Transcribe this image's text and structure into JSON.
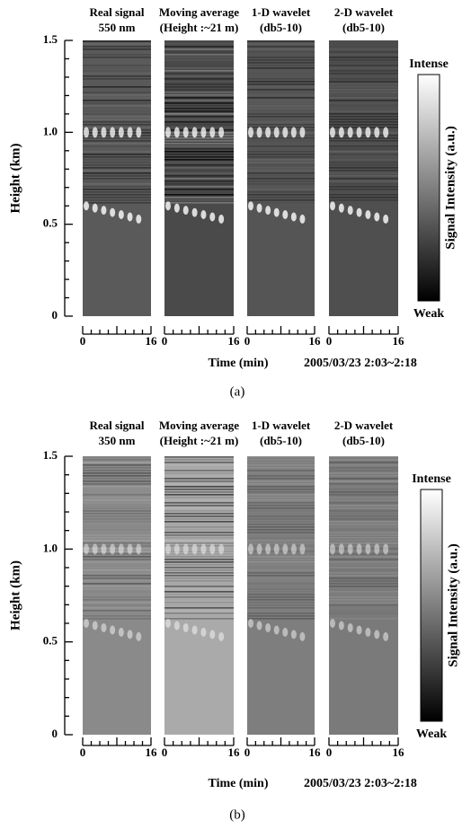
{
  "figure": {
    "panels": [
      {
        "titles": [
          [
            "Real signal",
            "550 nm"
          ],
          [
            "Moving average",
            "(Height :~21 m)"
          ],
          [
            "1-D wavelet",
            "(db5-10)"
          ],
          [
            "2-D wavelet",
            "(db5-10)"
          ]
        ],
        "y_label": "Height (km)",
        "y_ticks": [
          "0",
          "0.5",
          "1.0",
          "1.5"
        ],
        "x_ticks": [
          "0",
          "16"
        ],
        "x_label": "Time (min)",
        "date": "2005/03/23 2:03~2:18",
        "colorbar": {
          "top": "Intense",
          "bottom": "Weak",
          "label": "Signal Intensity (a.u.)"
        },
        "caption": "(a)"
      },
      {
        "titles": [
          [
            "Real signal",
            "350 nm"
          ],
          [
            "Moving average",
            "(Height :~21 m)"
          ],
          [
            "1-D wavelet",
            "(db5-10)"
          ],
          [
            "2-D wavelet",
            "(db5-10)"
          ]
        ],
        "y_label": "Height (km)",
        "y_ticks": [
          "0",
          "0.5",
          "1.0",
          "1.5"
        ],
        "x_ticks": [
          "0",
          "16"
        ],
        "x_label": "Time (min)",
        "date": "2005/03/23 2:03~2:18",
        "colorbar": {
          "top": "Intense",
          "bottom": "Weak",
          "label": "Signal Intensity (a.u.)"
        },
        "caption": "(b)"
      }
    ]
  }
}
